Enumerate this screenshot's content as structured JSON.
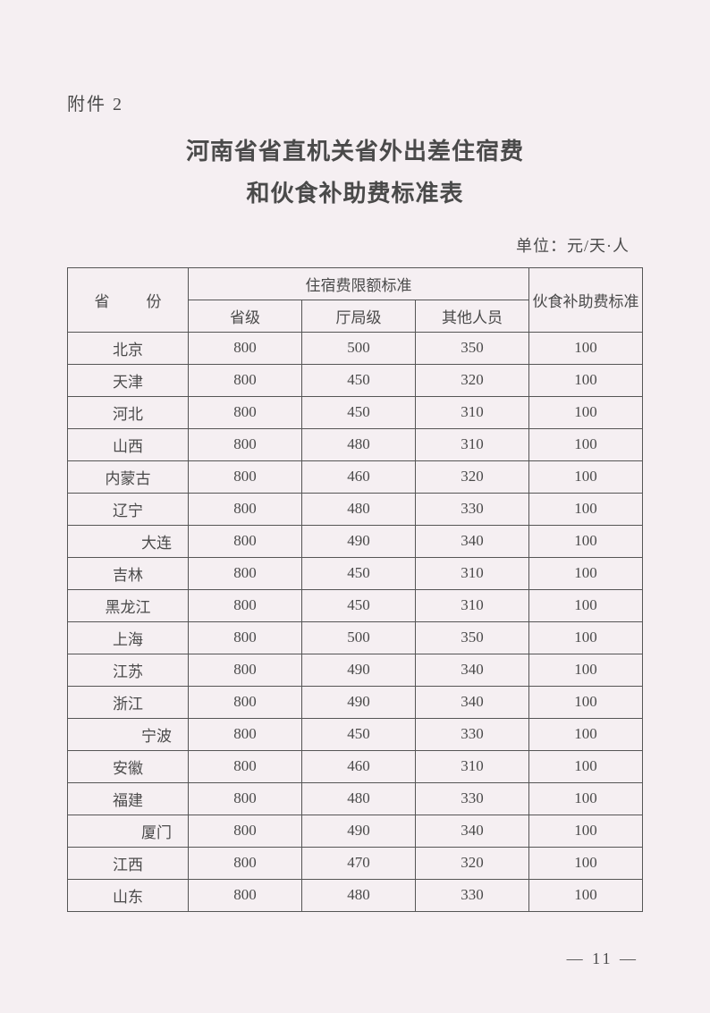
{
  "attachment_label": "附件 2",
  "title_line1": "河南省省直机关省外出差住宿费",
  "title_line2": "和伙食补助费标准表",
  "unit_label": "单位：元/天·人",
  "table": {
    "header": {
      "province": "省　份",
      "accommodation_group": "住宿费限额标准",
      "level1": "省级",
      "level2": "厅局级",
      "level3": "其他人员",
      "food_subsidy": "伙食补助费标准"
    },
    "rows": [
      {
        "province": "北京",
        "indented": false,
        "v1": "800",
        "v2": "500",
        "v3": "350",
        "v4": "100"
      },
      {
        "province": "天津",
        "indented": false,
        "v1": "800",
        "v2": "450",
        "v3": "320",
        "v4": "100"
      },
      {
        "province": "河北",
        "indented": false,
        "v1": "800",
        "v2": "450",
        "v3": "310",
        "v4": "100"
      },
      {
        "province": "山西",
        "indented": false,
        "v1": "800",
        "v2": "480",
        "v3": "310",
        "v4": "100"
      },
      {
        "province": "内蒙古",
        "indented": false,
        "v1": "800",
        "v2": "460",
        "v3": "320",
        "v4": "100"
      },
      {
        "province": "辽宁",
        "indented": false,
        "v1": "800",
        "v2": "480",
        "v3": "330",
        "v4": "100"
      },
      {
        "province": "大连",
        "indented": true,
        "v1": "800",
        "v2": "490",
        "v3": "340",
        "v4": "100"
      },
      {
        "province": "吉林",
        "indented": false,
        "v1": "800",
        "v2": "450",
        "v3": "310",
        "v4": "100"
      },
      {
        "province": "黑龙江",
        "indented": false,
        "v1": "800",
        "v2": "450",
        "v3": "310",
        "v4": "100"
      },
      {
        "province": "上海",
        "indented": false,
        "v1": "800",
        "v2": "500",
        "v3": "350",
        "v4": "100"
      },
      {
        "province": "江苏",
        "indented": false,
        "v1": "800",
        "v2": "490",
        "v3": "340",
        "v4": "100"
      },
      {
        "province": "浙江",
        "indented": false,
        "v1": "800",
        "v2": "490",
        "v3": "340",
        "v4": "100"
      },
      {
        "province": "宁波",
        "indented": true,
        "v1": "800",
        "v2": "450",
        "v3": "330",
        "v4": "100"
      },
      {
        "province": "安徽",
        "indented": false,
        "v1": "800",
        "v2": "460",
        "v3": "310",
        "v4": "100"
      },
      {
        "province": "福建",
        "indented": false,
        "v1": "800",
        "v2": "480",
        "v3": "330",
        "v4": "100"
      },
      {
        "province": "厦门",
        "indented": true,
        "v1": "800",
        "v2": "490",
        "v3": "340",
        "v4": "100"
      },
      {
        "province": "江西",
        "indented": false,
        "v1": "800",
        "v2": "470",
        "v3": "320",
        "v4": "100"
      },
      {
        "province": "山东",
        "indented": false,
        "v1": "800",
        "v2": "480",
        "v3": "330",
        "v4": "100"
      }
    ]
  },
  "page_number": "— 11 —",
  "colors": {
    "background": "#f5eff2",
    "text": "#4a4a4a",
    "border": "#555555"
  }
}
